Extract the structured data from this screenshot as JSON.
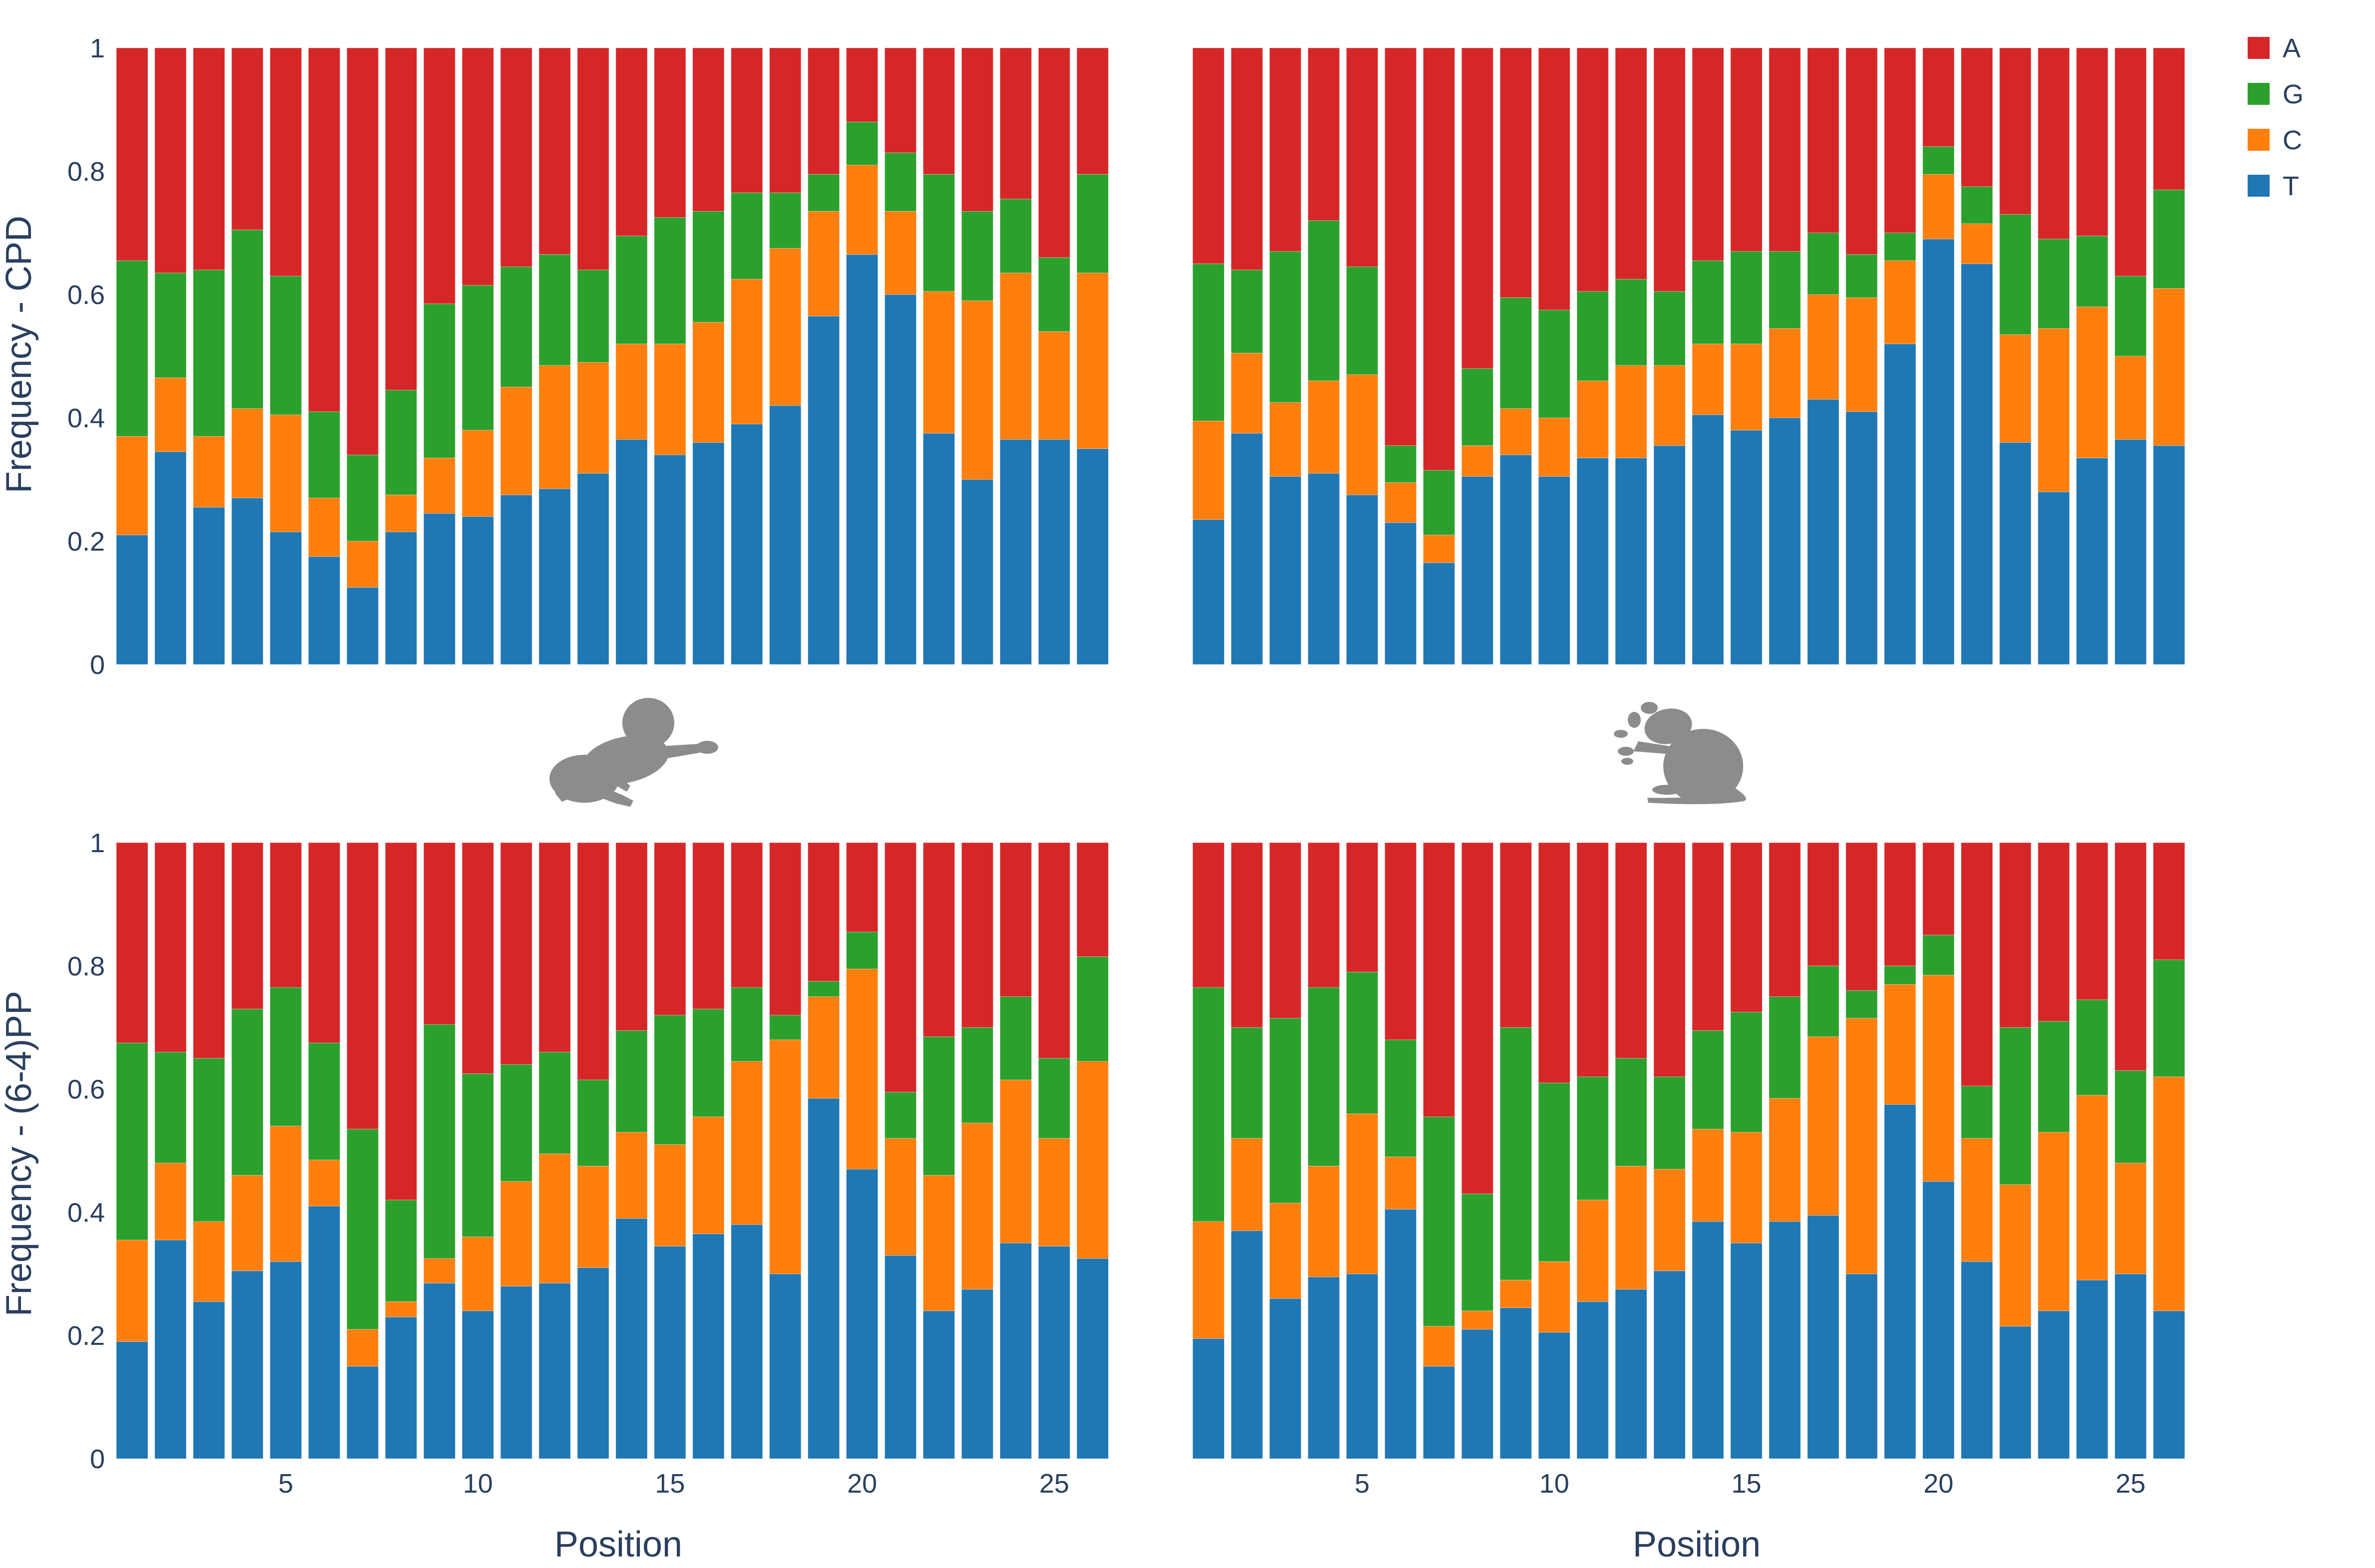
{
  "chart_data": {
    "type": "bar",
    "stacked": true,
    "legend": {
      "placement": "top-right",
      "entries": [
        "A",
        "G",
        "C",
        "T"
      ]
    },
    "colors": {
      "T": "#1f77b4",
      "C": "#ff7f0e",
      "G": "#2ca02c",
      "A": "#d62728"
    },
    "x": [
      1,
      2,
      3,
      4,
      5,
      6,
      7,
      8,
      9,
      10,
      11,
      12,
      13,
      14,
      15,
      16,
      17,
      18,
      19,
      20,
      21,
      22,
      23,
      24,
      25,
      26
    ],
    "xticks": [
      5,
      10,
      15,
      20,
      25
    ],
    "ylim": [
      0,
      1
    ],
    "yticks": [
      0,
      0.2,
      0.4,
      0.6,
      0.8,
      1
    ],
    "ytick_labels": [
      "0",
      "0.2",
      "0.4",
      "0.6",
      "0.8",
      "1"
    ],
    "xlabel": "Position",
    "ylabels": [
      "Frequency - CPD",
      "Frequency - (6-4)PP"
    ],
    "icons": [
      "human-infant-silhouette",
      "mouse-silhouette"
    ],
    "panels": [
      {
        "row": 0,
        "col": 0,
        "series": [
          {
            "name": "T",
            "values": [
              0.21,
              0.345,
              0.255,
              0.27,
              0.215,
              0.175,
              0.125,
              0.215,
              0.245,
              0.24,
              0.275,
              0.285,
              0.31,
              0.365,
              0.34,
              0.36,
              0.39,
              0.42,
              0.565,
              0.665,
              0.6,
              0.375,
              0.3,
              0.365,
              0.365,
              0.35
            ]
          },
          {
            "name": "C",
            "values": [
              0.16,
              0.12,
              0.115,
              0.145,
              0.19,
              0.095,
              0.075,
              0.06,
              0.09,
              0.14,
              0.175,
              0.2,
              0.18,
              0.155,
              0.18,
              0.195,
              0.235,
              0.255,
              0.17,
              0.145,
              0.135,
              0.23,
              0.29,
              0.27,
              0.175,
              0.285
            ]
          },
          {
            "name": "G",
            "values": [
              0.285,
              0.17,
              0.27,
              0.29,
              0.225,
              0.14,
              0.14,
              0.17,
              0.25,
              0.235,
              0.195,
              0.18,
              0.15,
              0.175,
              0.205,
              0.18,
              0.14,
              0.09,
              0.06,
              0.07,
              0.095,
              0.19,
              0.145,
              0.12,
              0.12,
              0.16
            ]
          },
          {
            "name": "A",
            "values": [
              0.345,
              0.365,
              0.36,
              0.295,
              0.37,
              0.59,
              0.66,
              0.555,
              0.415,
              0.385,
              0.355,
              0.335,
              0.36,
              0.305,
              0.275,
              0.265,
              0.235,
              0.235,
              0.205,
              0.12,
              0.17,
              0.205,
              0.265,
              0.245,
              0.34,
              0.205
            ]
          }
        ]
      },
      {
        "row": 0,
        "col": 1,
        "series": [
          {
            "name": "T",
            "values": [
              0.235,
              0.375,
              0.305,
              0.31,
              0.275,
              0.23,
              0.165,
              0.305,
              0.34,
              0.305,
              0.335,
              0.335,
              0.355,
              0.405,
              0.38,
              0.4,
              0.43,
              0.41,
              0.52,
              0.69,
              0.65,
              0.36,
              0.28,
              0.335,
              0.365,
              0.355
            ]
          },
          {
            "name": "C",
            "values": [
              0.16,
              0.13,
              0.12,
              0.15,
              0.195,
              0.065,
              0.045,
              0.05,
              0.075,
              0.095,
              0.125,
              0.15,
              0.13,
              0.115,
              0.14,
              0.145,
              0.17,
              0.185,
              0.135,
              0.105,
              0.065,
              0.175,
              0.265,
              0.245,
              0.135,
              0.255
            ]
          },
          {
            "name": "G",
            "values": [
              0.255,
              0.135,
              0.245,
              0.26,
              0.175,
              0.06,
              0.105,
              0.125,
              0.18,
              0.175,
              0.145,
              0.14,
              0.12,
              0.135,
              0.15,
              0.125,
              0.1,
              0.07,
              0.045,
              0.045,
              0.06,
              0.195,
              0.145,
              0.115,
              0.13,
              0.16
            ]
          },
          {
            "name": "A",
            "values": [
              0.35,
              0.36,
              0.33,
              0.28,
              0.355,
              0.645,
              0.685,
              0.52,
              0.405,
              0.425,
              0.395,
              0.375,
              0.395,
              0.345,
              0.33,
              0.33,
              0.3,
              0.335,
              0.3,
              0.16,
              0.225,
              0.27,
              0.31,
              0.305,
              0.37,
              0.23
            ]
          }
        ]
      },
      {
        "row": 1,
        "col": 0,
        "series": [
          {
            "name": "T",
            "values": [
              0.19,
              0.355,
              0.255,
              0.305,
              0.32,
              0.41,
              0.15,
              0.23,
              0.285,
              0.24,
              0.28,
              0.285,
              0.31,
              0.39,
              0.345,
              0.365,
              0.38,
              0.3,
              0.585,
              0.47,
              0.33,
              0.24,
              0.275,
              0.35,
              0.345,
              0.325
            ]
          },
          {
            "name": "C",
            "values": [
              0.165,
              0.125,
              0.13,
              0.155,
              0.22,
              0.075,
              0.06,
              0.025,
              0.04,
              0.12,
              0.17,
              0.21,
              0.165,
              0.14,
              0.165,
              0.19,
              0.265,
              0.38,
              0.165,
              0.325,
              0.19,
              0.22,
              0.27,
              0.265,
              0.175,
              0.32
            ]
          },
          {
            "name": "G",
            "values": [
              0.32,
              0.18,
              0.265,
              0.27,
              0.225,
              0.19,
              0.325,
              0.165,
              0.38,
              0.265,
              0.19,
              0.165,
              0.14,
              0.165,
              0.21,
              0.175,
              0.12,
              0.04,
              0.025,
              0.06,
              0.075,
              0.225,
              0.155,
              0.135,
              0.13,
              0.17
            ]
          },
          {
            "name": "A",
            "values": [
              0.325,
              0.34,
              0.35,
              0.27,
              0.235,
              0.325,
              0.465,
              0.58,
              0.295,
              0.375,
              0.36,
              0.34,
              0.385,
              0.305,
              0.28,
              0.27,
              0.235,
              0.28,
              0.225,
              0.145,
              0.405,
              0.315,
              0.3,
              0.25,
              0.35,
              0.185
            ]
          }
        ]
      },
      {
        "row": 1,
        "col": 1,
        "series": [
          {
            "name": "T",
            "values": [
              0.195,
              0.37,
              0.26,
              0.295,
              0.3,
              0.405,
              0.15,
              0.21,
              0.245,
              0.205,
              0.255,
              0.275,
              0.305,
              0.385,
              0.35,
              0.385,
              0.395,
              0.3,
              0.575,
              0.45,
              0.32,
              0.215,
              0.24,
              0.29,
              0.3,
              0.24
            ]
          },
          {
            "name": "C",
            "values": [
              0.19,
              0.15,
              0.155,
              0.18,
              0.26,
              0.085,
              0.065,
              0.03,
              0.045,
              0.115,
              0.165,
              0.2,
              0.165,
              0.15,
              0.18,
              0.2,
              0.29,
              0.415,
              0.195,
              0.335,
              0.2,
              0.23,
              0.29,
              0.3,
              0.18,
              0.38
            ]
          },
          {
            "name": "G",
            "values": [
              0.38,
              0.18,
              0.3,
              0.29,
              0.23,
              0.19,
              0.34,
              0.19,
              0.41,
              0.29,
              0.2,
              0.175,
              0.15,
              0.16,
              0.195,
              0.165,
              0.115,
              0.045,
              0.03,
              0.065,
              0.085,
              0.255,
              0.18,
              0.155,
              0.15,
              0.19
            ]
          },
          {
            "name": "A",
            "values": [
              0.235,
              0.3,
              0.285,
              0.235,
              0.21,
              0.32,
              0.445,
              0.57,
              0.3,
              0.39,
              0.38,
              0.35,
              0.38,
              0.305,
              0.275,
              0.25,
              0.2,
              0.24,
              0.2,
              0.15,
              0.395,
              0.3,
              0.29,
              0.255,
              0.37,
              0.19
            ]
          }
        ]
      }
    ]
  }
}
